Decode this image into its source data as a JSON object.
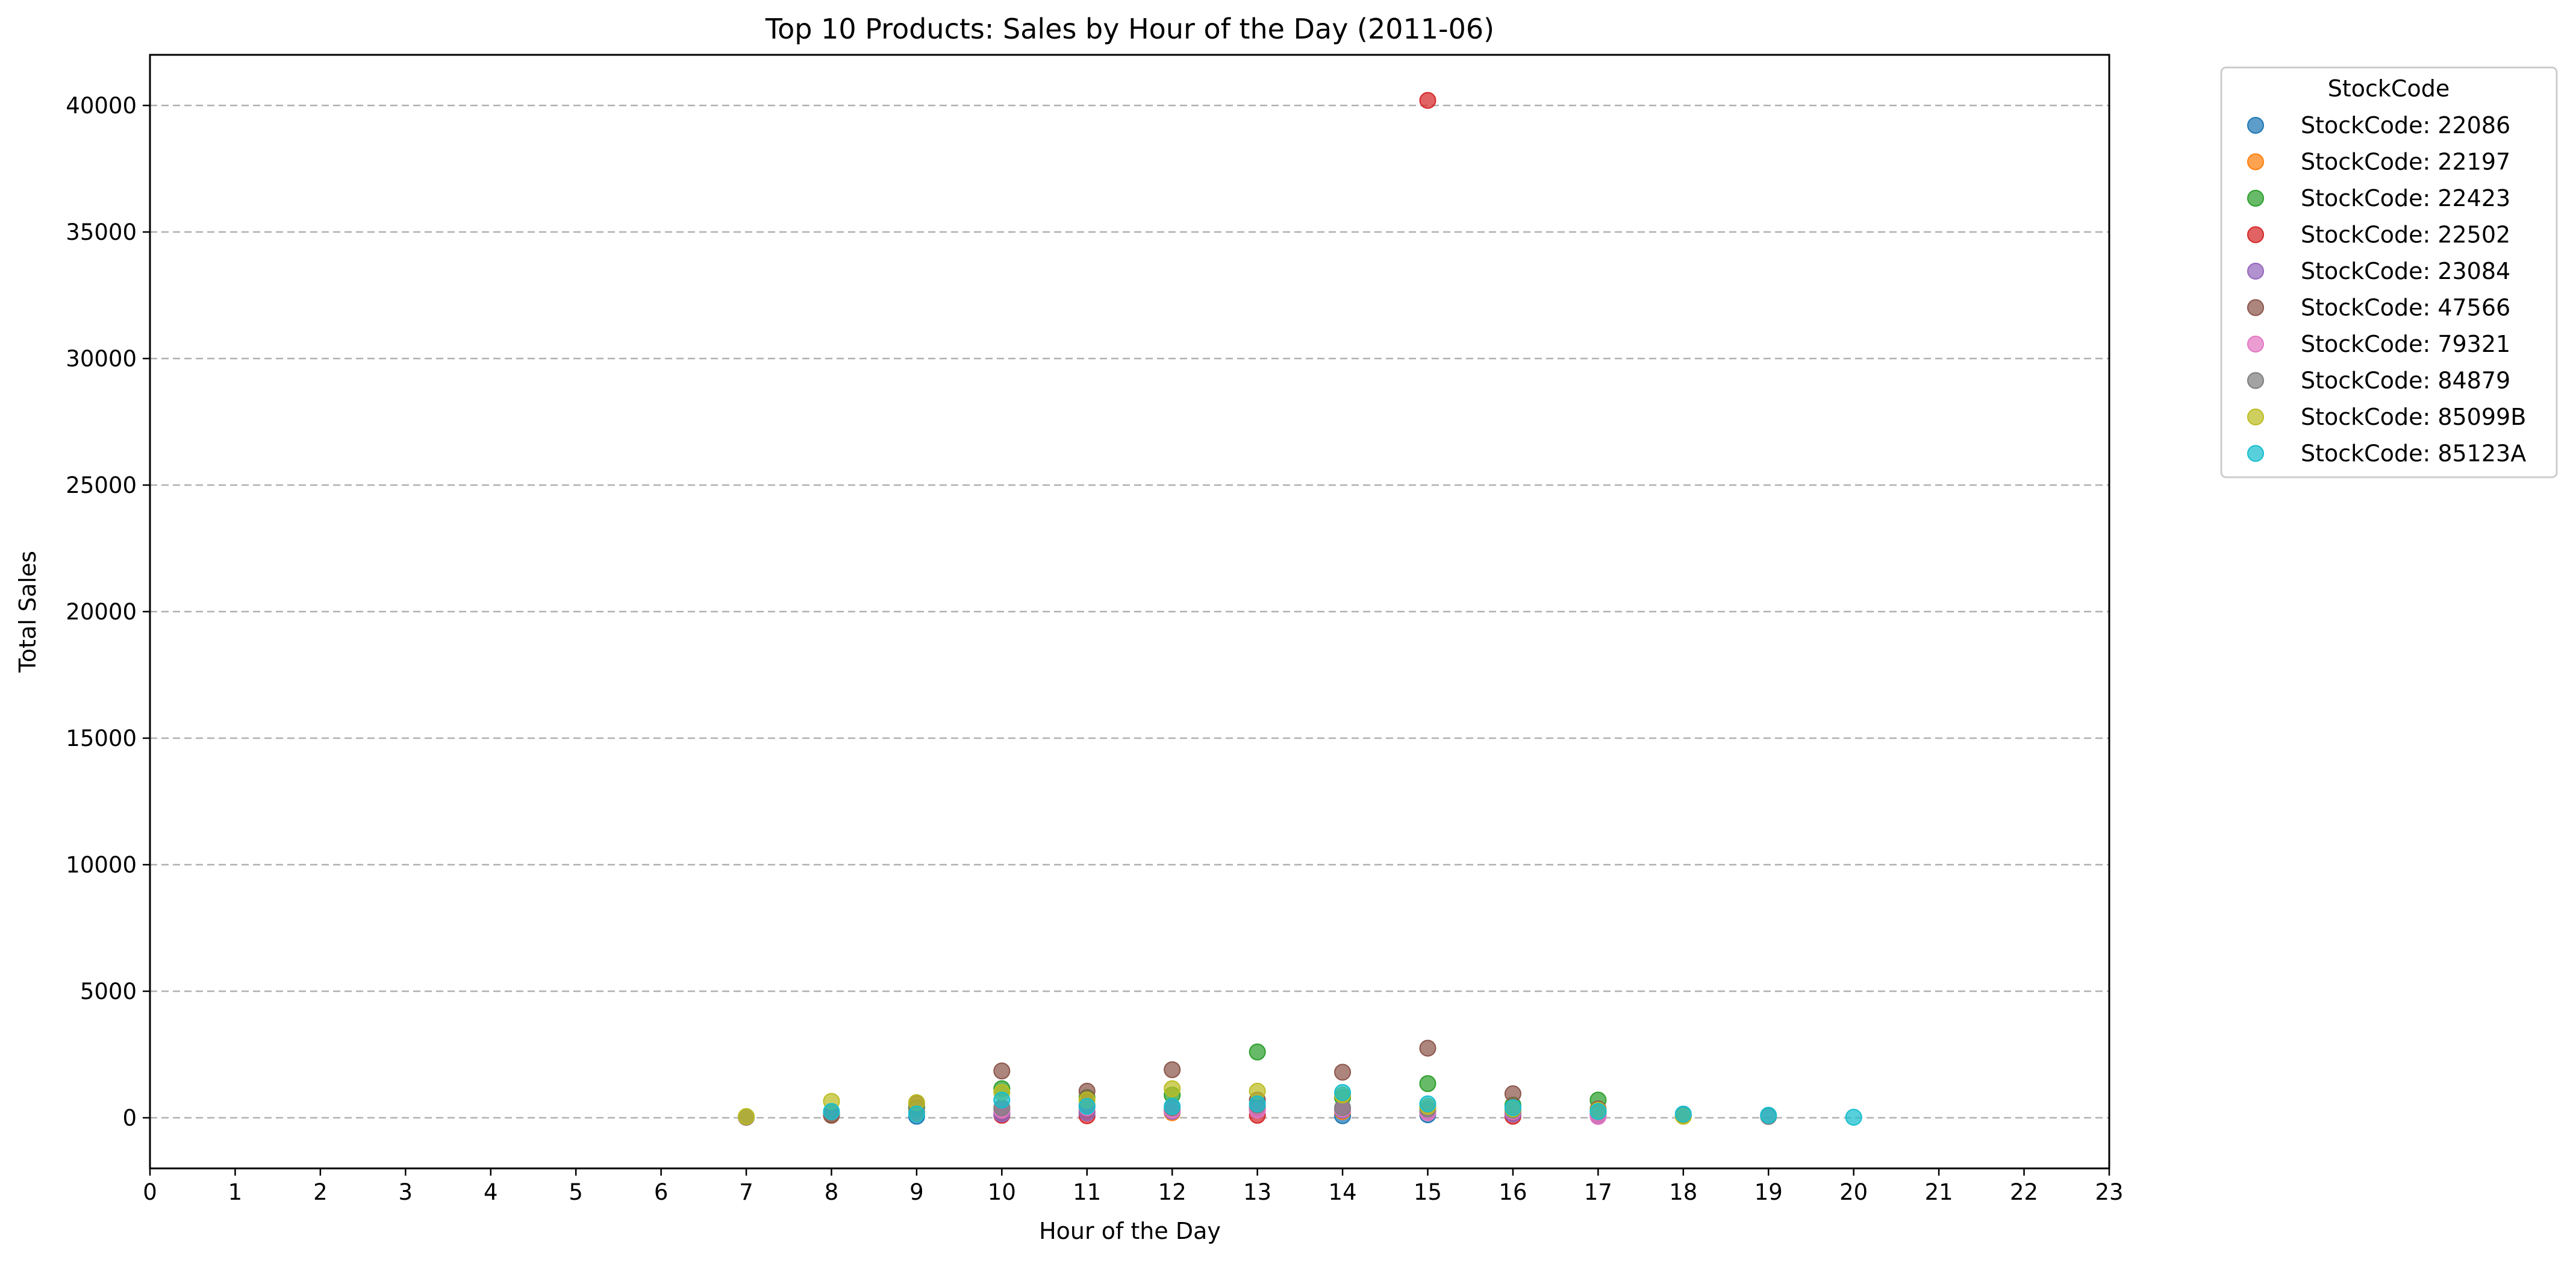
{
  "chart_data": {
    "type": "scatter",
    "title": "Top 10 Products: Sales by Hour of the Day (2011-06)",
    "xlabel": "Hour of the Day",
    "ylabel": "Total Sales",
    "xlim": [
      0,
      23
    ],
    "ylim": [
      -2000,
      42000
    ],
    "xticks": [
      0,
      1,
      2,
      3,
      4,
      5,
      6,
      7,
      8,
      9,
      10,
      11,
      12,
      13,
      14,
      15,
      16,
      17,
      18,
      19,
      20,
      21,
      22,
      23
    ],
    "yticks": [
      0,
      5000,
      10000,
      15000,
      20000,
      25000,
      30000,
      35000,
      40000
    ],
    "grid": "y-dashed",
    "legend": {
      "title": "StockCode",
      "placement": "outside-top-right"
    },
    "series": [
      {
        "name": "StockCode: 22086",
        "color": "#1f77b4",
        "points": [
          [
            8,
            150
          ],
          [
            9,
            60
          ],
          [
            10,
            200
          ],
          [
            11,
            250
          ],
          [
            12,
            300
          ],
          [
            13,
            400
          ],
          [
            14,
            80
          ],
          [
            15,
            120
          ],
          [
            16,
            150
          ],
          [
            17,
            100
          ]
        ]
      },
      {
        "name": "StockCode: 22197",
        "color": "#ff7f0e",
        "points": [
          [
            8,
            100
          ],
          [
            9,
            200
          ],
          [
            10,
            350
          ],
          [
            11,
            250
          ],
          [
            12,
            200
          ],
          [
            13,
            300
          ],
          [
            14,
            250
          ],
          [
            15,
            300
          ],
          [
            16,
            200
          ],
          [
            17,
            150
          ],
          [
            18,
            60
          ]
        ]
      },
      {
        "name": "StockCode: 22423",
        "color": "#2ca02c",
        "points": [
          [
            9,
            400
          ],
          [
            10,
            1150
          ],
          [
            11,
            800
          ],
          [
            12,
            900
          ],
          [
            13,
            2600
          ],
          [
            14,
            800
          ],
          [
            15,
            1350
          ],
          [
            16,
            500
          ],
          [
            17,
            700
          ]
        ]
      },
      {
        "name": "StockCode: 22502",
        "color": "#d62728",
        "points": [
          [
            10,
            100
          ],
          [
            11,
            80
          ],
          [
            13,
            100
          ],
          [
            15,
            40200
          ],
          [
            16,
            60
          ]
        ]
      },
      {
        "name": "StockCode: 23084",
        "color": "#9467bd",
        "points": [
          [
            10,
            150
          ],
          [
            11,
            200
          ],
          [
            12,
            250
          ],
          [
            13,
            300
          ],
          [
            14,
            300
          ],
          [
            15,
            250
          ],
          [
            16,
            150
          ],
          [
            17,
            100
          ]
        ]
      },
      {
        "name": "StockCode: 47566",
        "color": "#8c564b",
        "points": [
          [
            7,
            20
          ],
          [
            8,
            100
          ],
          [
            9,
            550
          ],
          [
            10,
            1850
          ],
          [
            11,
            1050
          ],
          [
            12,
            1900
          ],
          [
            13,
            700
          ],
          [
            14,
            1800
          ],
          [
            15,
            2750
          ],
          [
            16,
            950
          ],
          [
            17,
            350
          ]
        ]
      },
      {
        "name": "StockCode: 79321",
        "color": "#e377c2",
        "points": [
          [
            10,
            300
          ],
          [
            11,
            400
          ],
          [
            12,
            300
          ],
          [
            13,
            300
          ],
          [
            14,
            350
          ],
          [
            15,
            200
          ],
          [
            16,
            250
          ],
          [
            17,
            50
          ]
        ]
      },
      {
        "name": "StockCode: 84879",
        "color": "#7f7f7f",
        "points": [
          [
            7,
            40
          ],
          [
            8,
            200
          ],
          [
            9,
            250
          ],
          [
            10,
            400
          ],
          [
            11,
            500
          ],
          [
            12,
            400
          ],
          [
            13,
            500
          ],
          [
            14,
            400
          ],
          [
            15,
            350
          ],
          [
            16,
            300
          ],
          [
            17,
            250
          ],
          [
            18,
            100
          ],
          [
            19,
            50
          ]
        ]
      },
      {
        "name": "StockCode: 85099B",
        "color": "#bcbd22",
        "points": [
          [
            7,
            50
          ],
          [
            8,
            650
          ],
          [
            9,
            600
          ],
          [
            10,
            1000
          ],
          [
            11,
            700
          ],
          [
            12,
            1150
          ],
          [
            13,
            1050
          ],
          [
            14,
            900
          ],
          [
            15,
            450
          ],
          [
            16,
            350
          ],
          [
            17,
            300
          ],
          [
            18,
            60
          ]
        ]
      },
      {
        "name": "StockCode: 85123A",
        "color": "#17becf",
        "points": [
          [
            8,
            250
          ],
          [
            9,
            150
          ],
          [
            10,
            700
          ],
          [
            11,
            450
          ],
          [
            12,
            450
          ],
          [
            13,
            550
          ],
          [
            14,
            1000
          ],
          [
            15,
            550
          ],
          [
            16,
            400
          ],
          [
            17,
            250
          ],
          [
            18,
            150
          ],
          [
            19,
            100
          ],
          [
            20,
            20
          ]
        ]
      }
    ]
  }
}
